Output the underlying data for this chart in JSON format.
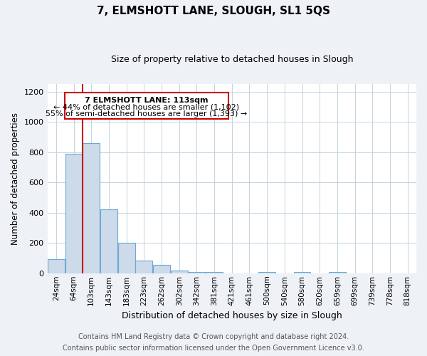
{
  "title": "7, ELMSHOTT LANE, SLOUGH, SL1 5QS",
  "subtitle": "Size of property relative to detached houses in Slough",
  "xlabel": "Distribution of detached houses by size in Slough",
  "ylabel": "Number of detached properties",
  "bar_color": "#ccdaea",
  "bar_edge_color": "#6aaad4",
  "categories": [
    "24sqm",
    "64sqm",
    "103sqm",
    "143sqm",
    "183sqm",
    "223sqm",
    "262sqm",
    "302sqm",
    "342sqm",
    "381sqm",
    "421sqm",
    "461sqm",
    "500sqm",
    "540sqm",
    "580sqm",
    "620sqm",
    "659sqm",
    "699sqm",
    "739sqm",
    "778sqm",
    "818sqm"
  ],
  "values": [
    93,
    790,
    860,
    420,
    200,
    85,
    53,
    20,
    10,
    10,
    0,
    0,
    10,
    0,
    10,
    0,
    10,
    0,
    0,
    0,
    0
  ],
  "ylim": [
    0,
    1250
  ],
  "yticks": [
    0,
    200,
    400,
    600,
    800,
    1000,
    1200
  ],
  "property_line_x": 1.5,
  "property_line_color": "#cc0000",
  "annotation_line1": "7 ELMSHOTT LANE: 113sqm",
  "annotation_line2": "← 44% of detached houses are smaller (1,102)",
  "annotation_line3": "55% of semi-detached houses are larger (1,393) →",
  "footnote1": "Contains HM Land Registry data © Crown copyright and database right 2024.",
  "footnote2": "Contains public sector information licensed under the Open Government Licence v3.0.",
  "bg_color": "#eef2f7",
  "plot_bg_color": "#ffffff",
  "grid_color": "#c5d3e0"
}
